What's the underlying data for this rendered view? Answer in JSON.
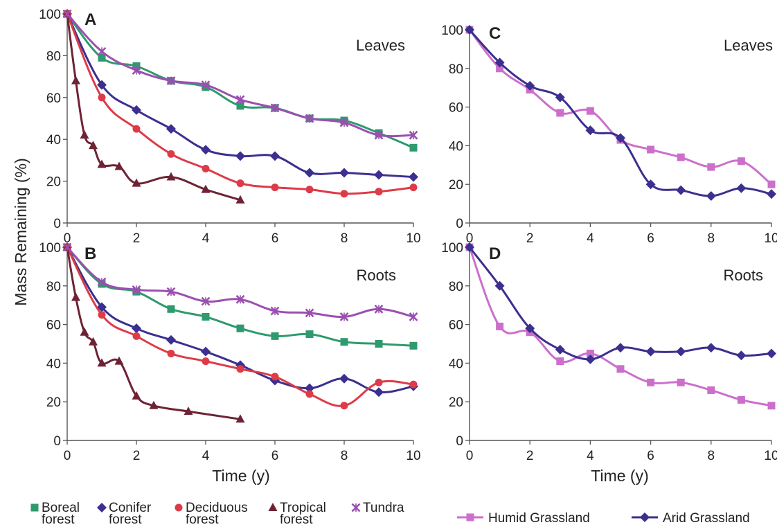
{
  "figure": {
    "ylabel": "Mass Remaining (%)",
    "xlabel_left": "Time (y)",
    "xlabel_right": "Time (y)"
  },
  "legend_left": [
    {
      "line1": "Boreal",
      "line2": "forest"
    },
    {
      "line1": "Conifer",
      "line2": "forest"
    },
    {
      "line1": "Deciduous",
      "line2": "forest"
    },
    {
      "line1": "Tropical",
      "line2": "forest"
    },
    {
      "line1": "Tundra",
      "line2": ""
    }
  ],
  "legend_right": [
    {
      "label": "Humid Grassland"
    },
    {
      "label": "Arid Grassland"
    }
  ],
  "colors": {
    "boreal": "#2e9a6e",
    "conifer": "#3b2f8f",
    "deciduous": "#dd3b48",
    "tropical": "#6e2334",
    "tundra": "#9b4fb0",
    "humid": "#cc6fcc",
    "arid": "#3b2f8f"
  },
  "chart_data": [
    {
      "id": "A",
      "type": "line",
      "letter": "A",
      "title": "Leaves",
      "xlim": [
        0,
        10
      ],
      "ylim": [
        0,
        100
      ],
      "xticks": [
        0,
        2,
        4,
        6,
        8,
        10
      ],
      "yticks": [
        0,
        20,
        40,
        60,
        80,
        100
      ],
      "series": [
        {
          "name": "Boreal forest",
          "marker": "square",
          "color": "#2e9a6e",
          "points": [
            [
              0,
              100
            ],
            [
              1,
              79
            ],
            [
              2,
              75
            ],
            [
              3,
              68
            ],
            [
              4,
              65
            ],
            [
              5,
              56
            ],
            [
              6,
              55
            ],
            [
              7,
              50
            ],
            [
              8,
              49
            ],
            [
              9,
              43
            ],
            [
              10,
              36
            ]
          ]
        },
        {
          "name": "Conifer forest",
          "marker": "diamond",
          "color": "#3b2f8f",
          "points": [
            [
              0,
              100
            ],
            [
              1,
              66
            ],
            [
              2,
              54
            ],
            [
              3,
              45
            ],
            [
              4,
              35
            ],
            [
              5,
              32
            ],
            [
              6,
              32
            ],
            [
              7,
              24
            ],
            [
              8,
              24
            ],
            [
              9,
              23
            ],
            [
              10,
              22
            ]
          ]
        },
        {
          "name": "Deciduous forest",
          "marker": "circle",
          "color": "#dd3b48",
          "points": [
            [
              0,
              100
            ],
            [
              1,
              60
            ],
            [
              2,
              45
            ],
            [
              3,
              33
            ],
            [
              4,
              26
            ],
            [
              5,
              19
            ],
            [
              6,
              17
            ],
            [
              7,
              16
            ],
            [
              8,
              14
            ],
            [
              9,
              15
            ],
            [
              10,
              17
            ]
          ]
        },
        {
          "name": "Tropical forest",
          "marker": "triangle",
          "color": "#6e2334",
          "points": [
            [
              0,
              100
            ],
            [
              0.25,
              68
            ],
            [
              0.5,
              42
            ],
            [
              0.75,
              37
            ],
            [
              1,
              28
            ],
            [
              1.5,
              27
            ],
            [
              2,
              19
            ],
            [
              3,
              22
            ],
            [
              4,
              16
            ],
            [
              5,
              11
            ]
          ]
        },
        {
          "name": "Tundra",
          "marker": "x",
          "color": "#9b4fb0",
          "points": [
            [
              0,
              100
            ],
            [
              1,
              82
            ],
            [
              2,
              73
            ],
            [
              3,
              68
            ],
            [
              4,
              66
            ],
            [
              5,
              59
            ],
            [
              6,
              55
            ],
            [
              7,
              50
            ],
            [
              8,
              48
            ],
            [
              9,
              42
            ],
            [
              10,
              42
            ]
          ]
        }
      ]
    },
    {
      "id": "B",
      "type": "line",
      "letter": "B",
      "title": "Roots",
      "xlim": [
        0,
        10
      ],
      "ylim": [
        0,
        100
      ],
      "xticks": [
        0,
        2,
        4,
        6,
        8,
        10
      ],
      "yticks": [
        0,
        20,
        40,
        60,
        80,
        100
      ],
      "series": [
        {
          "name": "Boreal forest",
          "marker": "square",
          "color": "#2e9a6e",
          "points": [
            [
              0,
              100
            ],
            [
              1,
              81
            ],
            [
              2,
              77
            ],
            [
              3,
              68
            ],
            [
              4,
              64
            ],
            [
              5,
              58
            ],
            [
              6,
              54
            ],
            [
              7,
              55
            ],
            [
              8,
              51
            ],
            [
              9,
              50
            ],
            [
              10,
              49
            ]
          ]
        },
        {
          "name": "Conifer forest",
          "marker": "diamond",
          "color": "#3b2f8f",
          "points": [
            [
              0,
              100
            ],
            [
              1,
              69
            ],
            [
              2,
              58
            ],
            [
              3,
              52
            ],
            [
              4,
              46
            ],
            [
              5,
              39
            ],
            [
              6,
              31
            ],
            [
              7,
              27
            ],
            [
              8,
              32
            ],
            [
              9,
              25
            ],
            [
              10,
              28
            ]
          ]
        },
        {
          "name": "Deciduous forest",
          "marker": "circle",
          "color": "#dd3b48",
          "points": [
            [
              0,
              100
            ],
            [
              1,
              65
            ],
            [
              2,
              54
            ],
            [
              3,
              45
            ],
            [
              4,
              41
            ],
            [
              5,
              37
            ],
            [
              6,
              33
            ],
            [
              7,
              24
            ],
            [
              8,
              18
            ],
            [
              9,
              30
            ],
            [
              10,
              29
            ]
          ]
        },
        {
          "name": "Tropical forest",
          "marker": "triangle",
          "color": "#6e2334",
          "points": [
            [
              0,
              100
            ],
            [
              0.25,
              74
            ],
            [
              0.5,
              56
            ],
            [
              0.75,
              51
            ],
            [
              1,
              40
            ],
            [
              1.5,
              41
            ],
            [
              2,
              23
            ],
            [
              2.5,
              18
            ],
            [
              3.5,
              15
            ],
            [
              5,
              11
            ]
          ]
        },
        {
          "name": "Tundra",
          "marker": "x",
          "color": "#9b4fb0",
          "points": [
            [
              0,
              100
            ],
            [
              1,
              82
            ],
            [
              2,
              78
            ],
            [
              3,
              77
            ],
            [
              4,
              72
            ],
            [
              5,
              73
            ],
            [
              6,
              67
            ],
            [
              7,
              66
            ],
            [
              8,
              64
            ],
            [
              9,
              68
            ],
            [
              10,
              64
            ]
          ]
        }
      ]
    },
    {
      "id": "C",
      "type": "line",
      "letter": "C",
      "title": "Leaves",
      "xlim": [
        0,
        10
      ],
      "ylim": [
        0,
        100
      ],
      "xticks": [
        0,
        2,
        4,
        6,
        8,
        10
      ],
      "yticks": [
        0,
        20,
        40,
        60,
        80,
        100
      ],
      "series": [
        {
          "name": "Humid Grassland",
          "marker": "square",
          "color": "#cc6fcc",
          "points": [
            [
              0,
              100
            ],
            [
              1,
              80
            ],
            [
              2,
              69
            ],
            [
              3,
              57
            ],
            [
              4,
              58
            ],
            [
              5,
              43
            ],
            [
              6,
              38
            ],
            [
              7,
              34
            ],
            [
              8,
              29
            ],
            [
              9,
              32
            ],
            [
              10,
              20
            ]
          ]
        },
        {
          "name": "Arid Grassland",
          "marker": "diamond",
          "color": "#3b2f8f",
          "points": [
            [
              0,
              100
            ],
            [
              1,
              83
            ],
            [
              2,
              71
            ],
            [
              3,
              65
            ],
            [
              4,
              48
            ],
            [
              5,
              44
            ],
            [
              6,
              20
            ],
            [
              7,
              17
            ],
            [
              8,
              14
            ],
            [
              9,
              18
            ],
            [
              10,
              15
            ]
          ]
        }
      ]
    },
    {
      "id": "D",
      "type": "line",
      "letter": "D",
      "title": "Roots",
      "xlim": [
        0,
        10
      ],
      "ylim": [
        0,
        100
      ],
      "xticks": [
        0,
        2,
        4,
        6,
        8,
        10
      ],
      "yticks": [
        0,
        20,
        40,
        60,
        80,
        100
      ],
      "series": [
        {
          "name": "Humid Grassland",
          "marker": "square",
          "color": "#cc6fcc",
          "points": [
            [
              0,
              100
            ],
            [
              1,
              59
            ],
            [
              2,
              56
            ],
            [
              3,
              41
            ],
            [
              4,
              45
            ],
            [
              5,
              37
            ],
            [
              6,
              30
            ],
            [
              7,
              30
            ],
            [
              8,
              26
            ],
            [
              9,
              21
            ],
            [
              10,
              18
            ]
          ]
        },
        {
          "name": "Arid Grassland",
          "marker": "diamond",
          "color": "#3b2f8f",
          "points": [
            [
              0,
              100
            ],
            [
              1,
              80
            ],
            [
              2,
              58
            ],
            [
              3,
              47
            ],
            [
              4,
              42
            ],
            [
              5,
              48
            ],
            [
              6,
              46
            ],
            [
              7,
              46
            ],
            [
              8,
              48
            ],
            [
              9,
              44
            ],
            [
              10,
              45
            ]
          ]
        }
      ]
    }
  ]
}
